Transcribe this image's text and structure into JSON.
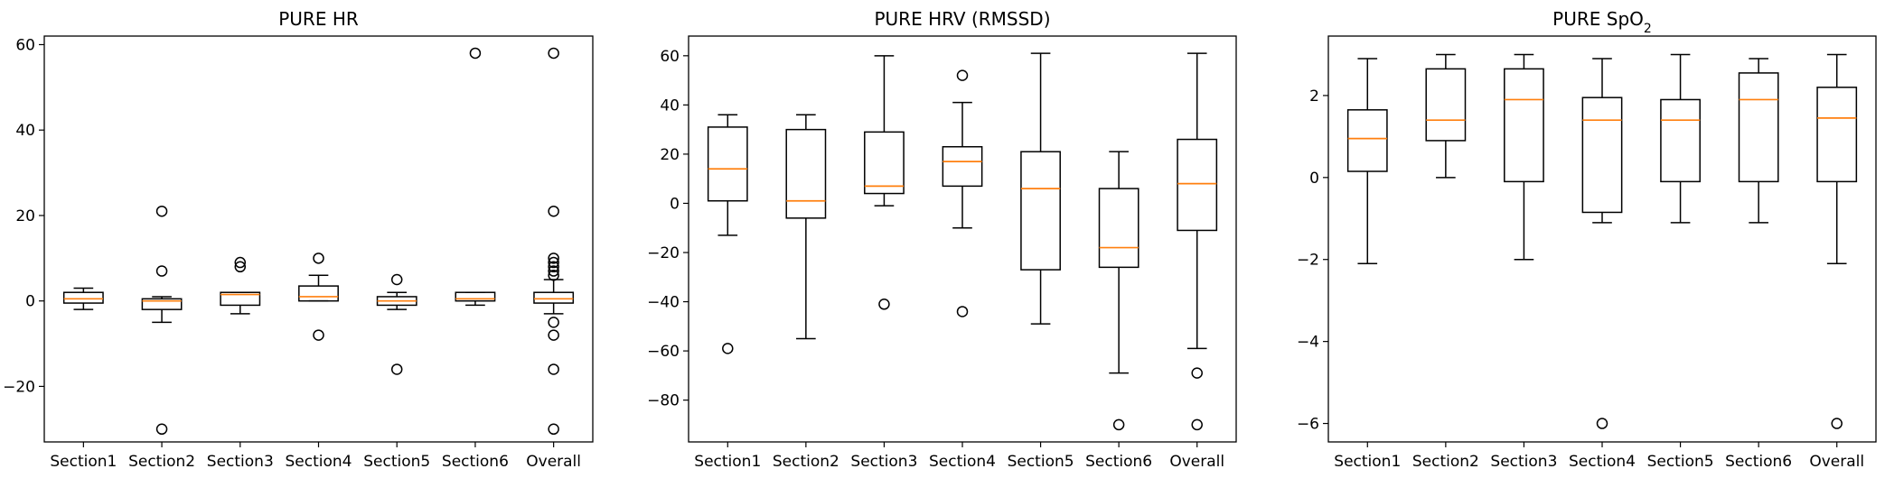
{
  "chart_data": [
    {
      "type": "box",
      "title": "PURE HR",
      "title_sub": "",
      "categories": [
        "Section1",
        "Section2",
        "Section3",
        "Section4",
        "Section5",
        "Section6",
        "Overall"
      ],
      "ylim": [
        -33,
        62
      ],
      "yticks": [
        -20,
        0,
        20,
        40,
        60
      ],
      "boxes": [
        {
          "whislo": -2,
          "q1": -0.5,
          "med": 0.5,
          "q3": 2,
          "whishi": 3,
          "fliers": []
        },
        {
          "whislo": -5,
          "q1": -2,
          "med": 0,
          "q3": 0.5,
          "whishi": 1,
          "fliers": [
            21,
            7,
            -30
          ]
        },
        {
          "whislo": -3,
          "q1": -1,
          "med": 1.5,
          "q3": 2,
          "whishi": 2,
          "fliers": [
            9,
            8
          ]
        },
        {
          "whislo": 0,
          "q1": 0,
          "med": 1,
          "q3": 3.5,
          "whishi": 6,
          "fliers": [
            10,
            -8
          ]
        },
        {
          "whislo": -2,
          "q1": -1,
          "med": 0,
          "q3": 1,
          "whishi": 2,
          "fliers": [
            5,
            -16
          ]
        },
        {
          "whislo": -1,
          "q1": 0,
          "med": 0.5,
          "q3": 2,
          "whishi": 2,
          "fliers": [
            58
          ]
        },
        {
          "whislo": -3,
          "q1": -0.5,
          "med": 0.5,
          "q3": 2,
          "whishi": 5,
          "fliers": [
            58,
            21,
            10,
            9,
            8,
            7,
            6,
            -5,
            -8,
            -16,
            -30
          ]
        }
      ]
    },
    {
      "type": "box",
      "title": "PURE HRV (RMSSD)",
      "title_sub": "",
      "categories": [
        "Section1",
        "Section2",
        "Section3",
        "Section4",
        "Section5",
        "Section6",
        "Overall"
      ],
      "ylim": [
        -97,
        68
      ],
      "yticks": [
        -80,
        -60,
        -40,
        -20,
        0,
        20,
        40,
        60
      ],
      "boxes": [
        {
          "whislo": -13,
          "q1": 1,
          "med": 14,
          "q3": 31,
          "whishi": 36,
          "fliers": [
            -59
          ]
        },
        {
          "whislo": -55,
          "q1": -6,
          "med": 1,
          "q3": 30,
          "whishi": 36,
          "fliers": []
        },
        {
          "whislo": -1,
          "q1": 4,
          "med": 7,
          "q3": 29,
          "whishi": 60,
          "fliers": [
            -41
          ]
        },
        {
          "whislo": -10,
          "q1": 7,
          "med": 17,
          "q3": 23,
          "whishi": 41,
          "fliers": [
            52,
            -44
          ]
        },
        {
          "whislo": -49,
          "q1": -27,
          "med": 6,
          "q3": 21,
          "whishi": 61,
          "fliers": []
        },
        {
          "whislo": -69,
          "q1": -26,
          "med": -18,
          "q3": 6,
          "whishi": 21,
          "fliers": [
            -90
          ]
        },
        {
          "whislo": -59,
          "q1": -11,
          "med": 8,
          "q3": 26,
          "whishi": 61,
          "fliers": [
            -69,
            -90
          ]
        }
      ]
    },
    {
      "type": "box",
      "title": "PURE SpO",
      "title_sub": "2",
      "categories": [
        "Section1",
        "Section2",
        "Section3",
        "Section4",
        "Section5",
        "Section6",
        "Overall"
      ],
      "ylim": [
        -6.45,
        3.45
      ],
      "yticks": [
        -6,
        -4,
        -2,
        0,
        2
      ],
      "boxes": [
        {
          "whislo": -2.1,
          "q1": 0.15,
          "med": 0.95,
          "q3": 1.65,
          "whishi": 2.9,
          "fliers": []
        },
        {
          "whislo": 0,
          "q1": 0.9,
          "med": 1.4,
          "q3": 2.65,
          "whishi": 3,
          "fliers": []
        },
        {
          "whislo": -2,
          "q1": -0.1,
          "med": 1.9,
          "q3": 2.65,
          "whishi": 3,
          "fliers": []
        },
        {
          "whislo": -1.1,
          "q1": -0.85,
          "med": 1.4,
          "q3": 1.95,
          "whishi": 2.9,
          "fliers": [
            -6
          ]
        },
        {
          "whislo": -1.1,
          "q1": -0.1,
          "med": 1.4,
          "q3": 1.9,
          "whishi": 3,
          "fliers": []
        },
        {
          "whislo": -1.1,
          "q1": -0.1,
          "med": 1.9,
          "q3": 2.55,
          "whishi": 2.9,
          "fliers": []
        },
        {
          "whislo": -2.1,
          "q1": -0.1,
          "med": 1.45,
          "q3": 2.2,
          "whishi": 3,
          "fliers": [
            -6
          ]
        }
      ]
    }
  ],
  "colors": {
    "median": "#ff7f0e",
    "box": "#000000",
    "background": "#ffffff"
  }
}
